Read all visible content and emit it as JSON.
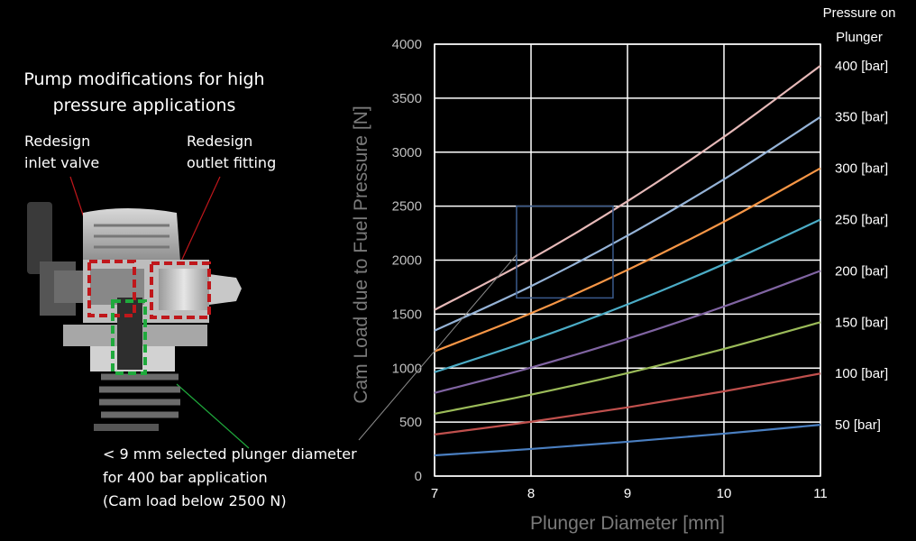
{
  "heading": "Pump modifications for high pressure applications",
  "callouts": {
    "inlet": [
      "Redesign",
      "inlet valve"
    ],
    "outlet": [
      "Redesign",
      "outlet fitting"
    ]
  },
  "caption": [
    "< 9 mm selected plunger diameter",
    "for 400 bar application",
    "(Cam load below 2500 N)"
  ],
  "colors": {
    "background": "#000000",
    "inlet_highlight": "#c0171b",
    "outlet_highlight": "#c0171b",
    "plunger_highlight": "#1faa3c",
    "zoom_box": "#3a5a8c"
  },
  "chart_data": {
    "type": "line",
    "xlabel": "Plunger Diameter [mm]",
    "ylabel": "Cam Load due to Fuel Pressure [N]",
    "legend_title": "Pressure on Plunger",
    "xlim": [
      7,
      11
    ],
    "ylim": [
      0,
      4000
    ],
    "xticks": [
      7,
      8,
      9,
      10,
      11
    ],
    "yticks": [
      0,
      500,
      1000,
      1500,
      2000,
      2500,
      3000,
      3500,
      4000
    ],
    "grid": true,
    "x": [
      7,
      8,
      9,
      10,
      11
    ],
    "series": [
      {
        "name": "50 [bar]",
        "color": "#4a7fc1",
        "values": [
          192,
          251,
          318,
          393,
          475
        ]
      },
      {
        "name": "100 [bar]",
        "color": "#c0504d",
        "values": [
          385,
          503,
          636,
          785,
          950
        ]
      },
      {
        "name": "150 [bar]",
        "color": "#9bbb59",
        "values": [
          577,
          754,
          954,
          1178,
          1425
        ]
      },
      {
        "name": "200 [bar]",
        "color": "#8064a2",
        "values": [
          770,
          1005,
          1272,
          1571,
          1901
        ]
      },
      {
        "name": "250 [bar]",
        "color": "#4bacc6",
        "values": [
          962,
          1257,
          1590,
          1963,
          2376
        ]
      },
      {
        "name": "300 [bar]",
        "color": "#f79646",
        "values": [
          1155,
          1508,
          1909,
          2356,
          2851
        ]
      },
      {
        "name": "350 [bar]",
        "color": "#95b3d7",
        "values": [
          1347,
          1759,
          2227,
          2749,
          3326
        ]
      },
      {
        "name": "400 [bar]",
        "color": "#e6b9b8",
        "values": [
          1539,
          2011,
          2545,
          3142,
          3801
        ]
      }
    ],
    "annotations": [
      "zoom box around 8–9 mm, 1650–2500 N"
    ]
  }
}
